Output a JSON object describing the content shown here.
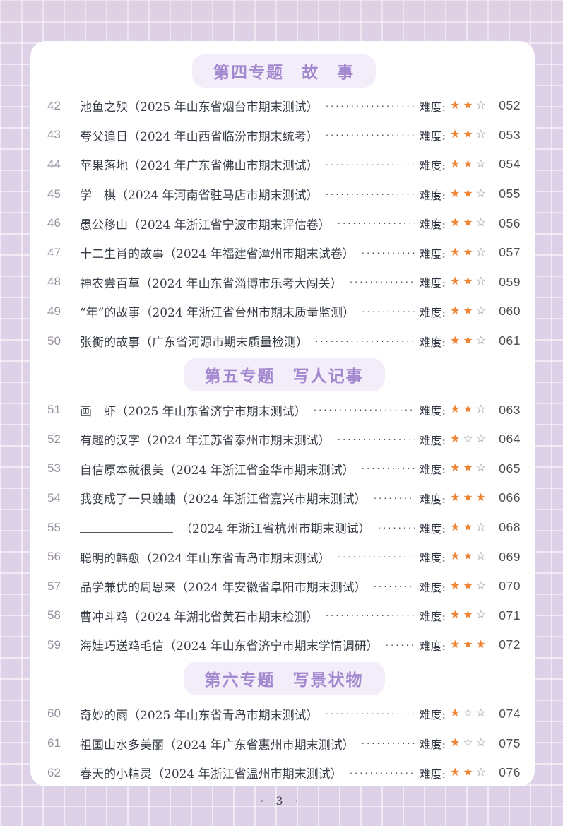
{
  "footer": {
    "page_label": "· 3 ·"
  },
  "colors": {
    "header_text": "#a288cf",
    "header_pill_bg": "#f3edf9",
    "star_filled": "#ee8434",
    "star_empty": "#8d8d8d",
    "background": "#dcd1e6"
  },
  "toc": {
    "difficulty_label": "难度:",
    "star_filled_glyph": "★",
    "star_empty_glyph": "☆",
    "max_stars": 3,
    "sections": [
      {
        "title": "第四专题　故　事",
        "items": [
          {
            "no": "42",
            "title": "池鱼之殃",
            "source": "（2025 年山东省烟台市期末测试）",
            "difficulty": 2,
            "page": "052"
          },
          {
            "no": "43",
            "title": "夸父追日",
            "source": "（2024 年山西省临汾市期末统考）",
            "difficulty": 2,
            "page": "053"
          },
          {
            "no": "44",
            "title": "苹果落地",
            "source": "（2024 年广东省佛山市期末测试）",
            "difficulty": 2,
            "page": "054"
          },
          {
            "no": "45",
            "title": "学　棋",
            "source": "（2024 年河南省驻马店市期末测试）",
            "difficulty": 2,
            "page": "055"
          },
          {
            "no": "46",
            "title": "愚公移山",
            "source": "（2024 年浙江省宁波市期末评估卷）",
            "difficulty": 2,
            "page": "056"
          },
          {
            "no": "47",
            "title": "十二生肖的故事",
            "source": "（2024 年福建省漳州市期末试卷）",
            "difficulty": 2,
            "page": "057"
          },
          {
            "no": "48",
            "title": "神农尝百草",
            "source": "（2024 年山东省淄博市乐考大闯关）",
            "difficulty": 2,
            "page": "059"
          },
          {
            "no": "49",
            "title": "“年”的故事",
            "source": "（2024 年浙江省台州市期末质量监测）",
            "difficulty": 2,
            "page": "060"
          },
          {
            "no": "50",
            "title": "张衡的故事",
            "source": "（广东省河源市期末质量检测）",
            "difficulty": 2,
            "page": "061"
          }
        ]
      },
      {
        "title": "第五专题　写人记事",
        "items": [
          {
            "no": "51",
            "title": "画　虾",
            "source": "（2025 年山东省济宁市期末测试）",
            "difficulty": 2,
            "page": "063"
          },
          {
            "no": "52",
            "title": "有趣的汉字",
            "source": "（2024 年江苏省泰州市期末测试）",
            "difficulty": 1,
            "page": "064"
          },
          {
            "no": "53",
            "title": "自信原本就很美",
            "source": "（2024 年浙江省金华市期末测试）",
            "difficulty": 2,
            "page": "065"
          },
          {
            "no": "54",
            "title": "我变成了一只蛐蛐",
            "source": "（2024 年浙江省嘉兴市期末测试）",
            "difficulty": 3,
            "page": "066"
          },
          {
            "no": "55",
            "title": "",
            "title_blank": true,
            "source": "（2024 年浙江省杭州市期末测试）",
            "difficulty": 2,
            "page": "068"
          },
          {
            "no": "56",
            "title": "聪明的韩愈",
            "source": "（2024 年山东省青岛市期末测试）",
            "difficulty": 2,
            "page": "069"
          },
          {
            "no": "57",
            "title": "品学兼优的周恩来",
            "source": "（2024 年安徽省阜阳市期末测试）",
            "difficulty": 2,
            "page": "070"
          },
          {
            "no": "58",
            "title": "曹冲斗鸡",
            "source": "（2024 年湖北省黄石市期末检测）",
            "difficulty": 2,
            "page": "071"
          },
          {
            "no": "59",
            "title": "海娃巧送鸡毛信",
            "source": "（2024 年山东省济宁市期末学情调研）",
            "difficulty": 3,
            "page": "072"
          }
        ]
      },
      {
        "title": "第六专题　写景状物",
        "items": [
          {
            "no": "60",
            "title": "奇妙的雨",
            "source": "（2025 年山东省青岛市期末测试）",
            "difficulty": 1,
            "page": "074"
          },
          {
            "no": "61",
            "title": "祖国山水多美丽",
            "source": "（2024 年广东省惠州市期末测试）",
            "difficulty": 1,
            "page": "075"
          },
          {
            "no": "62",
            "title": "春天的小精灵",
            "source": "（2024 年浙江省温州市期末测试）",
            "difficulty": 2,
            "page": "076"
          }
        ]
      }
    ]
  }
}
